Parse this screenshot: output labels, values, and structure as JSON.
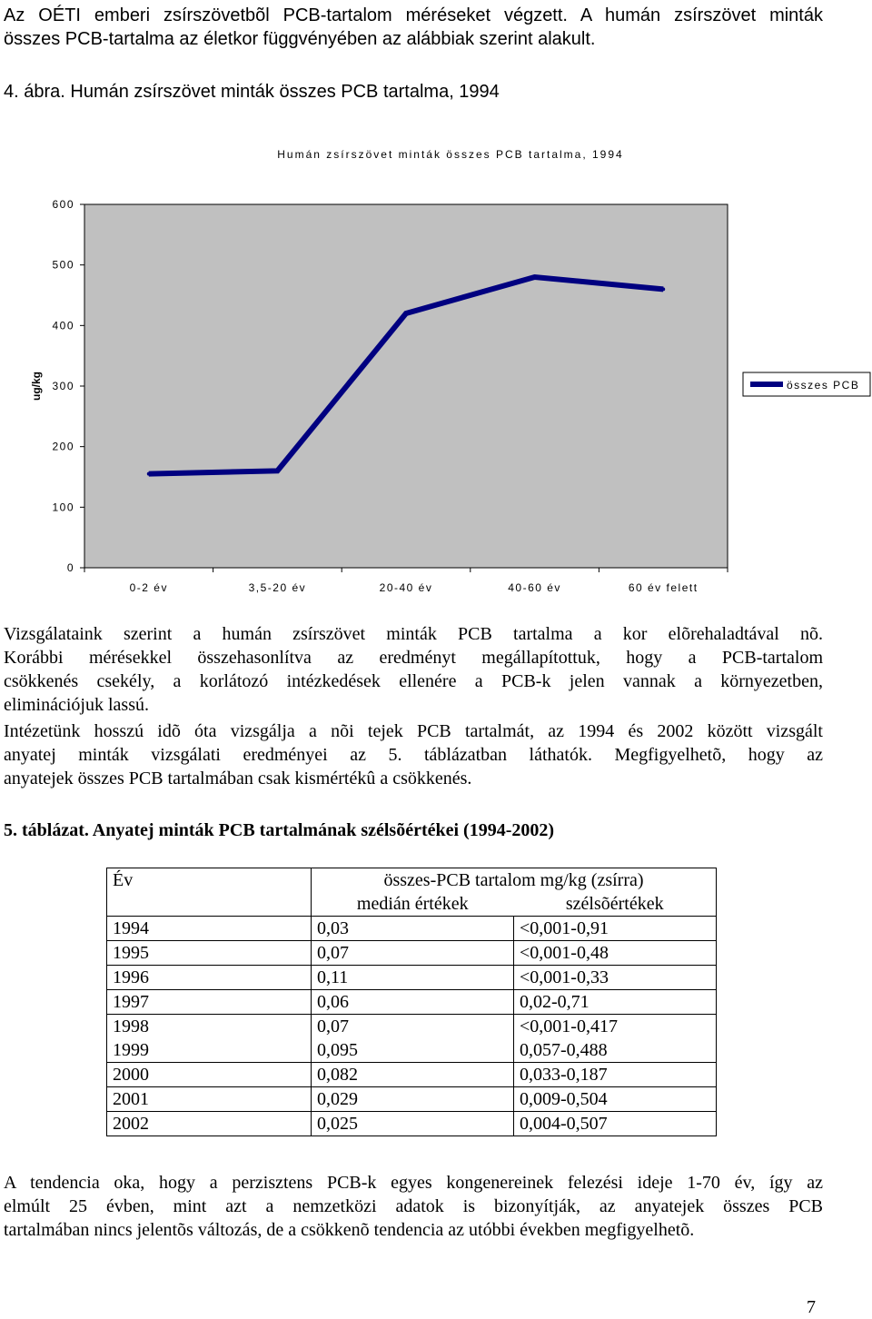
{
  "intro": {
    "line1": "Az OÉTI emberi zsírszövetbõl PCB-tartalom méréseket végzett. A humán zsírszövet minták",
    "line2": "összes PCB-tartalma az életkor függvényében az alábbiak szerint alakult."
  },
  "figure": {
    "label": "4. ábra.",
    "caption": "Humán zsírszövet minták összes PCB tartalma, 1994"
  },
  "chart_data": {
    "type": "line",
    "title": "Humán zsírszövet minták összes PCB tartalma, 1994",
    "ylabel": "ug/kg",
    "xlabel": "",
    "categories": [
      "0-2 év",
      "3,5-20 év",
      "20-40 év",
      "40-60 év",
      "60 év felett"
    ],
    "series": [
      {
        "name": "összes PCB",
        "values": [
          155,
          160,
          420,
          480,
          460
        ]
      }
    ],
    "ylim": [
      0,
      600
    ],
    "yticks": [
      0,
      100,
      200,
      300,
      400,
      500,
      600
    ],
    "grid": false,
    "legend": "right",
    "colors": {
      "plot_bg": "#c0c0c0",
      "line": "#000080"
    }
  },
  "paragraphs": {
    "p1": [
      "Vizsgálataink szerint a humán zsírszövet minták PCB tartalma a kor elõrehaladtával nõ.",
      "Korábbi mérésekkel összehasonlítva az eredményt megállapítottuk, hogy a PCB-tartalom",
      "csökkenés csekély, a korlátozó intézkedések ellenére a PCB-k jelen vannak a környezetben,",
      "eliminációjuk lassú."
    ],
    "p2": [
      "Intézetünk hosszú idõ óta vizsgálja a nõi tejek PCB tartalmát, az 1994 és 2002 között vizsgált",
      "anyatej minták vizsgálati eredményei az 5. táblázatban láthatók. Megfigyelhetõ, hogy az",
      "anyatejek összes PCB tartalmában csak kismértékû a csökkenés."
    ]
  },
  "table": {
    "caption": "5. táblázat.  Anyatej minták PCB  tartalmának szélsõértékei (1994-2002)",
    "header_year": "Év",
    "header_group": "összes-PCB tartalom mg/kg (zsírra)",
    "header_median": "medián értékek",
    "header_range": "szélsõértékek",
    "rows": [
      {
        "year": "1994",
        "median": "0,03",
        "range": "<0,001-0,91"
      },
      {
        "year": "1995",
        "median": "0,07",
        "range": "<0,001-0,48"
      },
      {
        "year": "1996",
        "median": "0,11",
        "range": "<0,001-0,33"
      },
      {
        "year": "1997",
        "median": "0,06",
        "range": "0,02-0,71"
      },
      {
        "year": "1998",
        "median": "0,07",
        "range": "<0,001-0,417"
      },
      {
        "year": "1999",
        "median": "0,095",
        "range": "0,057-0,488"
      },
      {
        "year": "2000",
        "median": "0,082",
        "range": "0,033-0,187"
      },
      {
        "year": "2001",
        "median": "0,029",
        "range": "0,009-0,504"
      },
      {
        "year": "2002",
        "median": "0,025",
        "range": "0,004-0,507"
      }
    ]
  },
  "conclusion": [
    "A tendencia oka, hogy a perzisztens PCB-k egyes kongenereinek felezési ideje 1-70 év, így az",
    "elmúlt 25 évben, mint azt a nemzetközi adatok is bizonyítják, az anyatejek összes PCB",
    "tartalmában nincs jelentõs változás, de a csökkenõ tendencia az utóbbi években megfigyelhetõ."
  ],
  "page_number": "7"
}
